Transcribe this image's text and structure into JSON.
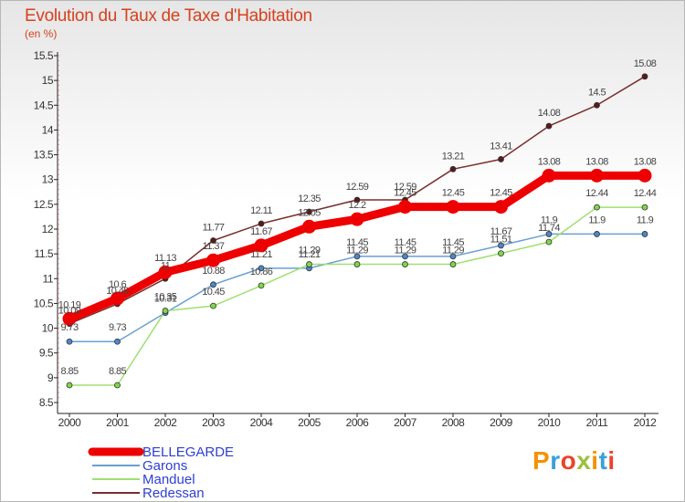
{
  "header": {
    "title": "Evolution du Taux de Taxe d'Habitation",
    "subtitle": "(en %)"
  },
  "logo": {
    "text": "Proxiti",
    "colors": [
      "#f39200",
      "#3aa0d8",
      "#e8452c",
      "#9ac13c",
      "#f39200",
      "#3aa0d8",
      "#e8452c"
    ]
  },
  "chart_data": {
    "type": "line",
    "title": "Evolution du Taux de Taxe d'Habitation",
    "ylabel": "(en %)",
    "xlabel": "",
    "x": [
      "2000",
      "2001",
      "2002",
      "2003",
      "2004",
      "2005",
      "2006",
      "2007",
      "2008",
      "2009",
      "2010",
      "2011",
      "2012"
    ],
    "ylim": [
      8.5,
      15.5
    ],
    "yticks": [
      "8.5",
      "9",
      "9.5",
      "10",
      "10.5",
      "11",
      "11.5",
      "12",
      "12.5",
      "13",
      "13.5",
      "14",
      "14.5",
      "15",
      "15.5"
    ],
    "grid": false,
    "legend_position": "bottom-left",
    "series": [
      {
        "name": "BELLEGARDE",
        "color": "#ee0000",
        "values": [
          10.19,
          10.6,
          11.13,
          11.37,
          11.67,
          12.05,
          12.2,
          12.45,
          12.45,
          12.45,
          13.08,
          13.08,
          13.08
        ],
        "labels": [
          "10.19",
          "10.6",
          "11.13",
          "11.37",
          "11.67",
          "12.05",
          "12.2",
          "12.45",
          "12.45",
          "12.45",
          "13.08",
          "13.08",
          "13.08"
        ]
      },
      {
        "name": "Garons",
        "color": "#6a9fd4",
        "values": [
          9.73,
          9.73,
          10.31,
          10.88,
          11.21,
          11.21,
          11.45,
          11.45,
          11.45,
          11.67,
          11.9,
          11.9,
          11.9
        ],
        "labels": [
          "9.73",
          "9.73",
          "10.31",
          "10.88",
          "11.21",
          "11.21",
          "11.45",
          "11.45",
          "11.45",
          "11.67",
          "11.9",
          "11.9",
          "11.9"
        ]
      },
      {
        "name": "Manduel",
        "color": "#9fe070",
        "values": [
          8.85,
          8.85,
          10.35,
          10.45,
          10.86,
          11.29,
          11.29,
          11.29,
          11.29,
          11.51,
          11.74,
          12.44,
          12.44
        ],
        "labels": [
          "8.85",
          "8.85",
          "10.35",
          "10.45",
          "10.86",
          "11.29",
          "11.29",
          "11.29",
          "11.29",
          "11.51",
          "11.74",
          "12.44",
          "12.44"
        ]
      },
      {
        "name": "Redessan",
        "color": "#7a2e2e",
        "values": [
          10.09,
          10.49,
          11,
          11.77,
          12.11,
          12.35,
          12.59,
          12.59,
          13.21,
          13.41,
          14.08,
          14.5,
          15.08
        ],
        "labels": [
          "10.09",
          "10.49",
          "11",
          "11.77",
          "12.11",
          "12.35",
          "12.59",
          "12.59",
          "13.21",
          "13.41",
          "14.08",
          "14.5",
          "15.08"
        ]
      }
    ]
  }
}
